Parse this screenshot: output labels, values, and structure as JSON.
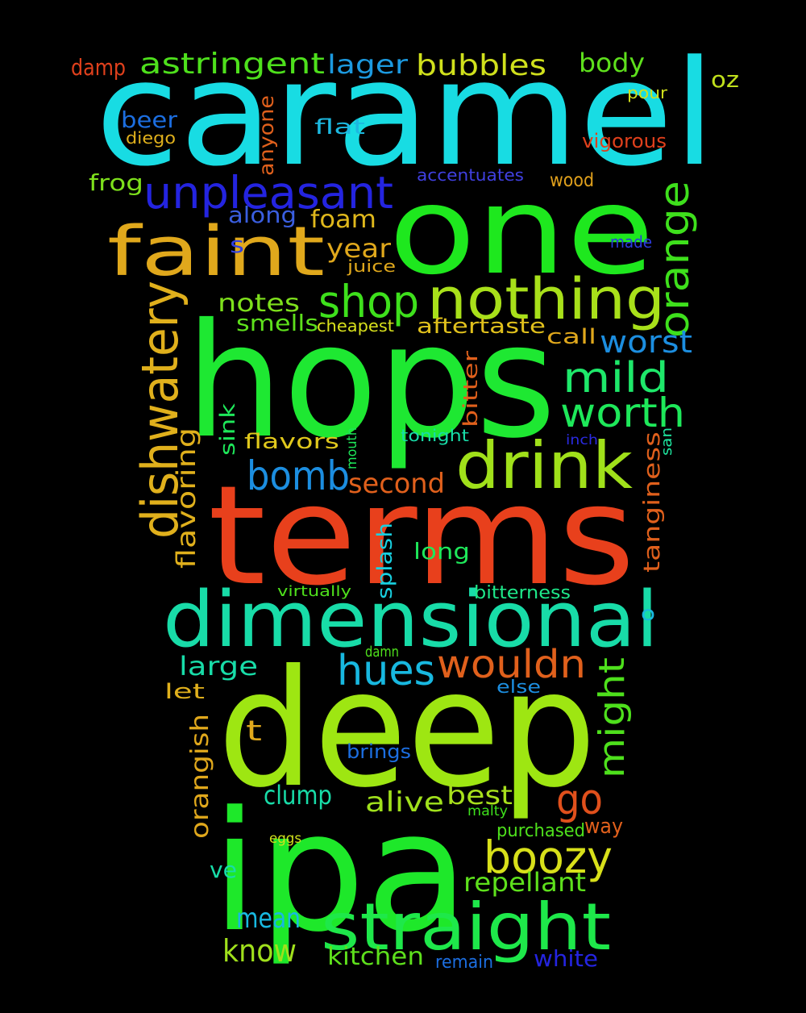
{
  "words": [
    {
      "text": "caramel",
      "color": "#18dce3"
    },
    {
      "text": "one",
      "color": "#1ee81e"
    },
    {
      "text": "hops",
      "color": "#1ee832"
    },
    {
      "text": "terms",
      "color": "#e8401c"
    },
    {
      "text": "deep",
      "color": "#9ee612"
    },
    {
      "text": "ipa",
      "color": "#1ee82a"
    },
    {
      "text": "dimensional",
      "color": "#18dca8"
    },
    {
      "text": "faint",
      "color": "#e0a81c"
    },
    {
      "text": "nothing",
      "color": "#a8e01a"
    },
    {
      "text": "drink",
      "color": "#a0e01a"
    },
    {
      "text": "straight",
      "color": "#1ee84a"
    },
    {
      "text": "unpleasant",
      "color": "#2424e0"
    },
    {
      "text": "shop",
      "color": "#3ee01c"
    },
    {
      "text": "orange",
      "color": "#3ee01c"
    },
    {
      "text": "dishwatery",
      "color": "#e0b01c"
    },
    {
      "text": "worth",
      "color": "#1ee85a"
    },
    {
      "text": "mild",
      "color": "#1ee86a"
    },
    {
      "text": "bomb",
      "color": "#1c8ee0"
    },
    {
      "text": "hues",
      "color": "#18b8e0"
    },
    {
      "text": "wouldn",
      "color": "#e0601c"
    },
    {
      "text": "boozy",
      "color": "#d8e01a"
    },
    {
      "text": "go",
      "color": "#e0501c"
    },
    {
      "text": "might",
      "color": "#4ee01c"
    },
    {
      "text": "astringent",
      "color": "#4ee01c"
    },
    {
      "text": "bubbles",
      "color": "#d0e01c"
    },
    {
      "text": "lager",
      "color": "#1c9ae0"
    },
    {
      "text": "body",
      "color": "#5ee01c"
    },
    {
      "text": "damp",
      "color": "#e0401c"
    },
    {
      "text": "oz",
      "color": "#c0e01c"
    },
    {
      "text": "beer",
      "color": "#1c6ee0"
    },
    {
      "text": "flat",
      "color": "#1cb8e0"
    },
    {
      "text": "pour",
      "color": "#d0e01c"
    },
    {
      "text": "diego",
      "color": "#e0b01c"
    },
    {
      "text": "vigorous",
      "color": "#e0401c"
    },
    {
      "text": "anyone",
      "color": "#e0601c"
    },
    {
      "text": "frog",
      "color": "#7ee01c"
    },
    {
      "text": "accentuates",
      "color": "#4040e0"
    },
    {
      "text": "wood",
      "color": "#e0a01c"
    },
    {
      "text": "along",
      "color": "#3a5ee0"
    },
    {
      "text": "foam",
      "color": "#e0b81c"
    },
    {
      "text": "s",
      "color": "#3040e0"
    },
    {
      "text": "year",
      "color": "#e0a81c"
    },
    {
      "text": "made",
      "color": "#2c3ae0"
    },
    {
      "text": "juice",
      "color": "#e0a81c"
    },
    {
      "text": "notes",
      "color": "#7ee01c"
    },
    {
      "text": "smells",
      "color": "#5ee01c"
    },
    {
      "text": "cheapest",
      "color": "#d8e01c"
    },
    {
      "text": "aftertaste",
      "color": "#e0c01c"
    },
    {
      "text": "call",
      "color": "#e0a81c"
    },
    {
      "text": "worst",
      "color": "#1c8ee0"
    },
    {
      "text": "bitter",
      "color": "#e0601c"
    },
    {
      "text": "sink",
      "color": "#1ee85a"
    },
    {
      "text": "flavors",
      "color": "#e0c81c"
    },
    {
      "text": "mouth",
      "color": "#1ee85a"
    },
    {
      "text": "tonight",
      "color": "#18dca8"
    },
    {
      "text": "inch",
      "color": "#2a2ae0"
    },
    {
      "text": "san",
      "color": "#1ee8a0"
    },
    {
      "text": "flavoring",
      "color": "#e0b01c"
    },
    {
      "text": "second",
      "color": "#e0601c"
    },
    {
      "text": "tanginess",
      "color": "#e0601c"
    },
    {
      "text": "splash",
      "color": "#18d0e0"
    },
    {
      "text": "long",
      "color": "#1ee85a"
    },
    {
      "text": "virtually",
      "color": "#4ee01c"
    },
    {
      "text": "bitterness",
      "color": "#1ee88a"
    },
    {
      "text": "o",
      "color": "#18b8e0"
    },
    {
      "text": "large",
      "color": "#18dca8"
    },
    {
      "text": "let",
      "color": "#e0b01c"
    },
    {
      "text": "damn",
      "color": "#4ee01c"
    },
    {
      "text": "else",
      "color": "#1c8ee0"
    },
    {
      "text": "t",
      "color": "#e0a81c"
    },
    {
      "text": "orangish",
      "color": "#e0a81c"
    },
    {
      "text": "brings",
      "color": "#1c6ee0"
    },
    {
      "text": "clump",
      "color": "#18dca8"
    },
    {
      "text": "alive",
      "color": "#a0e01c"
    },
    {
      "text": "best",
      "color": "#a8e01c"
    },
    {
      "text": "malty",
      "color": "#3ee01c"
    },
    {
      "text": "eggs",
      "color": "#d0e01c"
    },
    {
      "text": "purchased",
      "color": "#4ee01c"
    },
    {
      "text": "way",
      "color": "#e0601c"
    },
    {
      "text": "ve",
      "color": "#18dca8"
    },
    {
      "text": "repellant",
      "color": "#5ee01c"
    },
    {
      "text": "mean",
      "color": "#18b8e0"
    },
    {
      "text": "know",
      "color": "#a0e01c"
    },
    {
      "text": "kitchen",
      "color": "#5ee01c"
    },
    {
      "text": "remain",
      "color": "#1c6ee0"
    },
    {
      "text": "white",
      "color": "#2424e0"
    }
  ]
}
